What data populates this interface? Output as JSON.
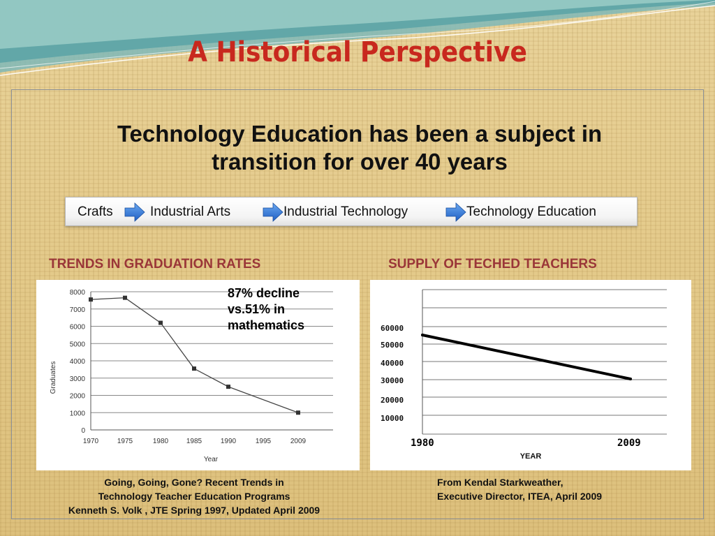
{
  "slide": {
    "title": "A Historical Perspective",
    "subtitle_line1": "Technology Education has been a subject in",
    "subtitle_line2": "transition for over 40 years",
    "accent_color": "#c8281e",
    "arrow_color": "#2e6fd1"
  },
  "progression": {
    "steps": [
      "Crafts",
      "Industrial Arts",
      "Industrial Technology",
      "Technology Education"
    ],
    "arrow_icon": "blue-right-arrow-icon"
  },
  "graduation": {
    "heading": "TRENDS IN GRADUATION RATES",
    "annotation": "87% decline vs.51% in mathematics",
    "citation": [
      "Going, Going, Gone? Recent Trends in",
      "Technology Teacher Education Programs",
      "Kenneth S. Volk , JTE Spring 1997, Updated April 2009"
    ]
  },
  "supply": {
    "heading": "SUPPLY OF TECHED TEACHERS",
    "citation": [
      "From Kendal Starkweather,",
      "Executive Director, ITEA, April 2009"
    ]
  },
  "chart_data": [
    {
      "type": "line",
      "xlabel": "Year",
      "ylabel": "Graduates",
      "ylim": [
        0,
        8000
      ],
      "yticks": [
        "0",
        "1000",
        "2000",
        "3000",
        "4000",
        "5000",
        "6000",
        "7000",
        "8000"
      ],
      "xticks": [
        "1970",
        "1975",
        "1980",
        "1985",
        "1990",
        "1995",
        "2009"
      ],
      "grid": true,
      "legend": "none",
      "series": [
        {
          "x": [
            1970,
            1975,
            1980,
            1985,
            1990,
            2009
          ],
          "values": [
            7550,
            7650,
            6200,
            3550,
            2500,
            1000
          ]
        }
      ]
    },
    {
      "type": "line",
      "xlabel": "YEAR",
      "ylabel": "",
      "ylim": [
        0,
        80000
      ],
      "yticks": [
        "10000",
        "20000",
        "30000",
        "40000",
        "50000",
        "60000"
      ],
      "xticks": [
        "1980",
        "2009"
      ],
      "grid": true,
      "legend": "none",
      "series": [
        {
          "x": [
            1980,
            2009
          ],
          "values": [
            55000,
            30000
          ]
        }
      ]
    }
  ]
}
